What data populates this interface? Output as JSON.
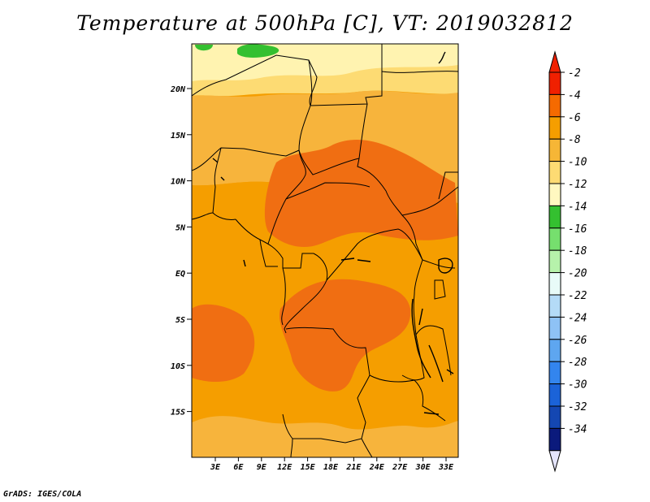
{
  "title": "Temperature at 500hPa [C], VT: 2019032812",
  "credit": "GrADS: IGES/COLA",
  "lat_labels": [
    "20N",
    "15N",
    "10N",
    "5N",
    "EQ",
    "5S",
    "10S",
    "15S"
  ],
  "lon_labels": [
    "3E",
    "6E",
    "9E",
    "12E",
    "15E",
    "18E",
    "21E",
    "24E",
    "27E",
    "30E",
    "33E"
  ],
  "colorbar": {
    "labels": [
      "-2",
      "-4",
      "-6",
      "-8",
      "-10",
      "-12",
      "-14",
      "-16",
      "-18",
      "-20",
      "-22",
      "-24",
      "-26",
      "-28",
      "-30",
      "-32",
      "-34"
    ],
    "colors": [
      "#f02000",
      "#f56a00",
      "#f59e00",
      "#f6b636",
      "#fddb73",
      "#fff8c0",
      "#34c030",
      "#76df6e",
      "#b6f2ab",
      "#e8fbf8",
      "#b4dbf7",
      "#8ec2f5",
      "#5ea6f0",
      "#3385ee",
      "#1b63d8",
      "#1447b2",
      "#0b1a7c"
    ],
    "over_color": "#f02000",
    "under_color": "#e4e4fb"
  },
  "field_colors": {
    "warm": "#f06e12",
    "mid": "#f59e00",
    "light": "#f7b43c",
    "pale": "#fddb73",
    "cream": "#fff3b0",
    "green": "#34c030"
  }
}
